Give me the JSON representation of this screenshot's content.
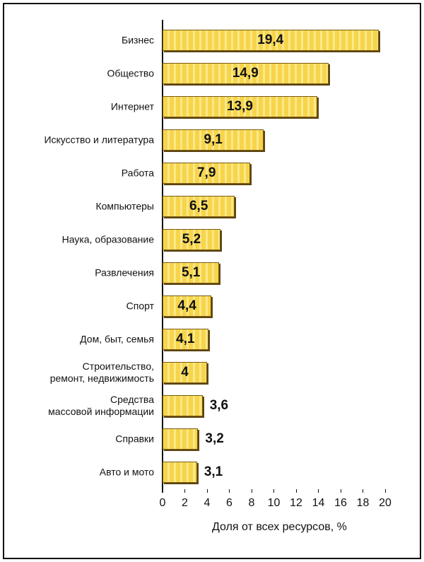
{
  "chart_data": {
    "type": "bar",
    "orientation": "horizontal",
    "categories": [
      "Бизнес",
      "Общество",
      "Интернет",
      "Искусство и литература",
      "Работа",
      "Компьютеры",
      "Наука, образование",
      "Развлечения",
      "Спорт",
      "Дом, быт, семья",
      "Строительство,\nремонт, недвижимость",
      "Средства\nмассовой информации",
      "Справки",
      "Авто и мото"
    ],
    "values": [
      19.4,
      14.9,
      13.9,
      9.1,
      7.9,
      6.5,
      5.2,
      5.1,
      4.4,
      4.1,
      4,
      3.6,
      3.2,
      3.1
    ],
    "value_labels": [
      "19,4",
      "14,9",
      "13,9",
      "9,1",
      "7,9",
      "6,5",
      "5,2",
      "5,1",
      "4,4",
      "4,1",
      "4",
      "3,6",
      "3,2",
      "3,1"
    ],
    "color": "#f7d54a",
    "xlabel": "Доля от всех ресурсов, %",
    "xlim": [
      0,
      20
    ],
    "xticks": [
      0,
      2,
      4,
      6,
      8,
      10,
      12,
      14,
      16,
      18,
      20
    ]
  }
}
